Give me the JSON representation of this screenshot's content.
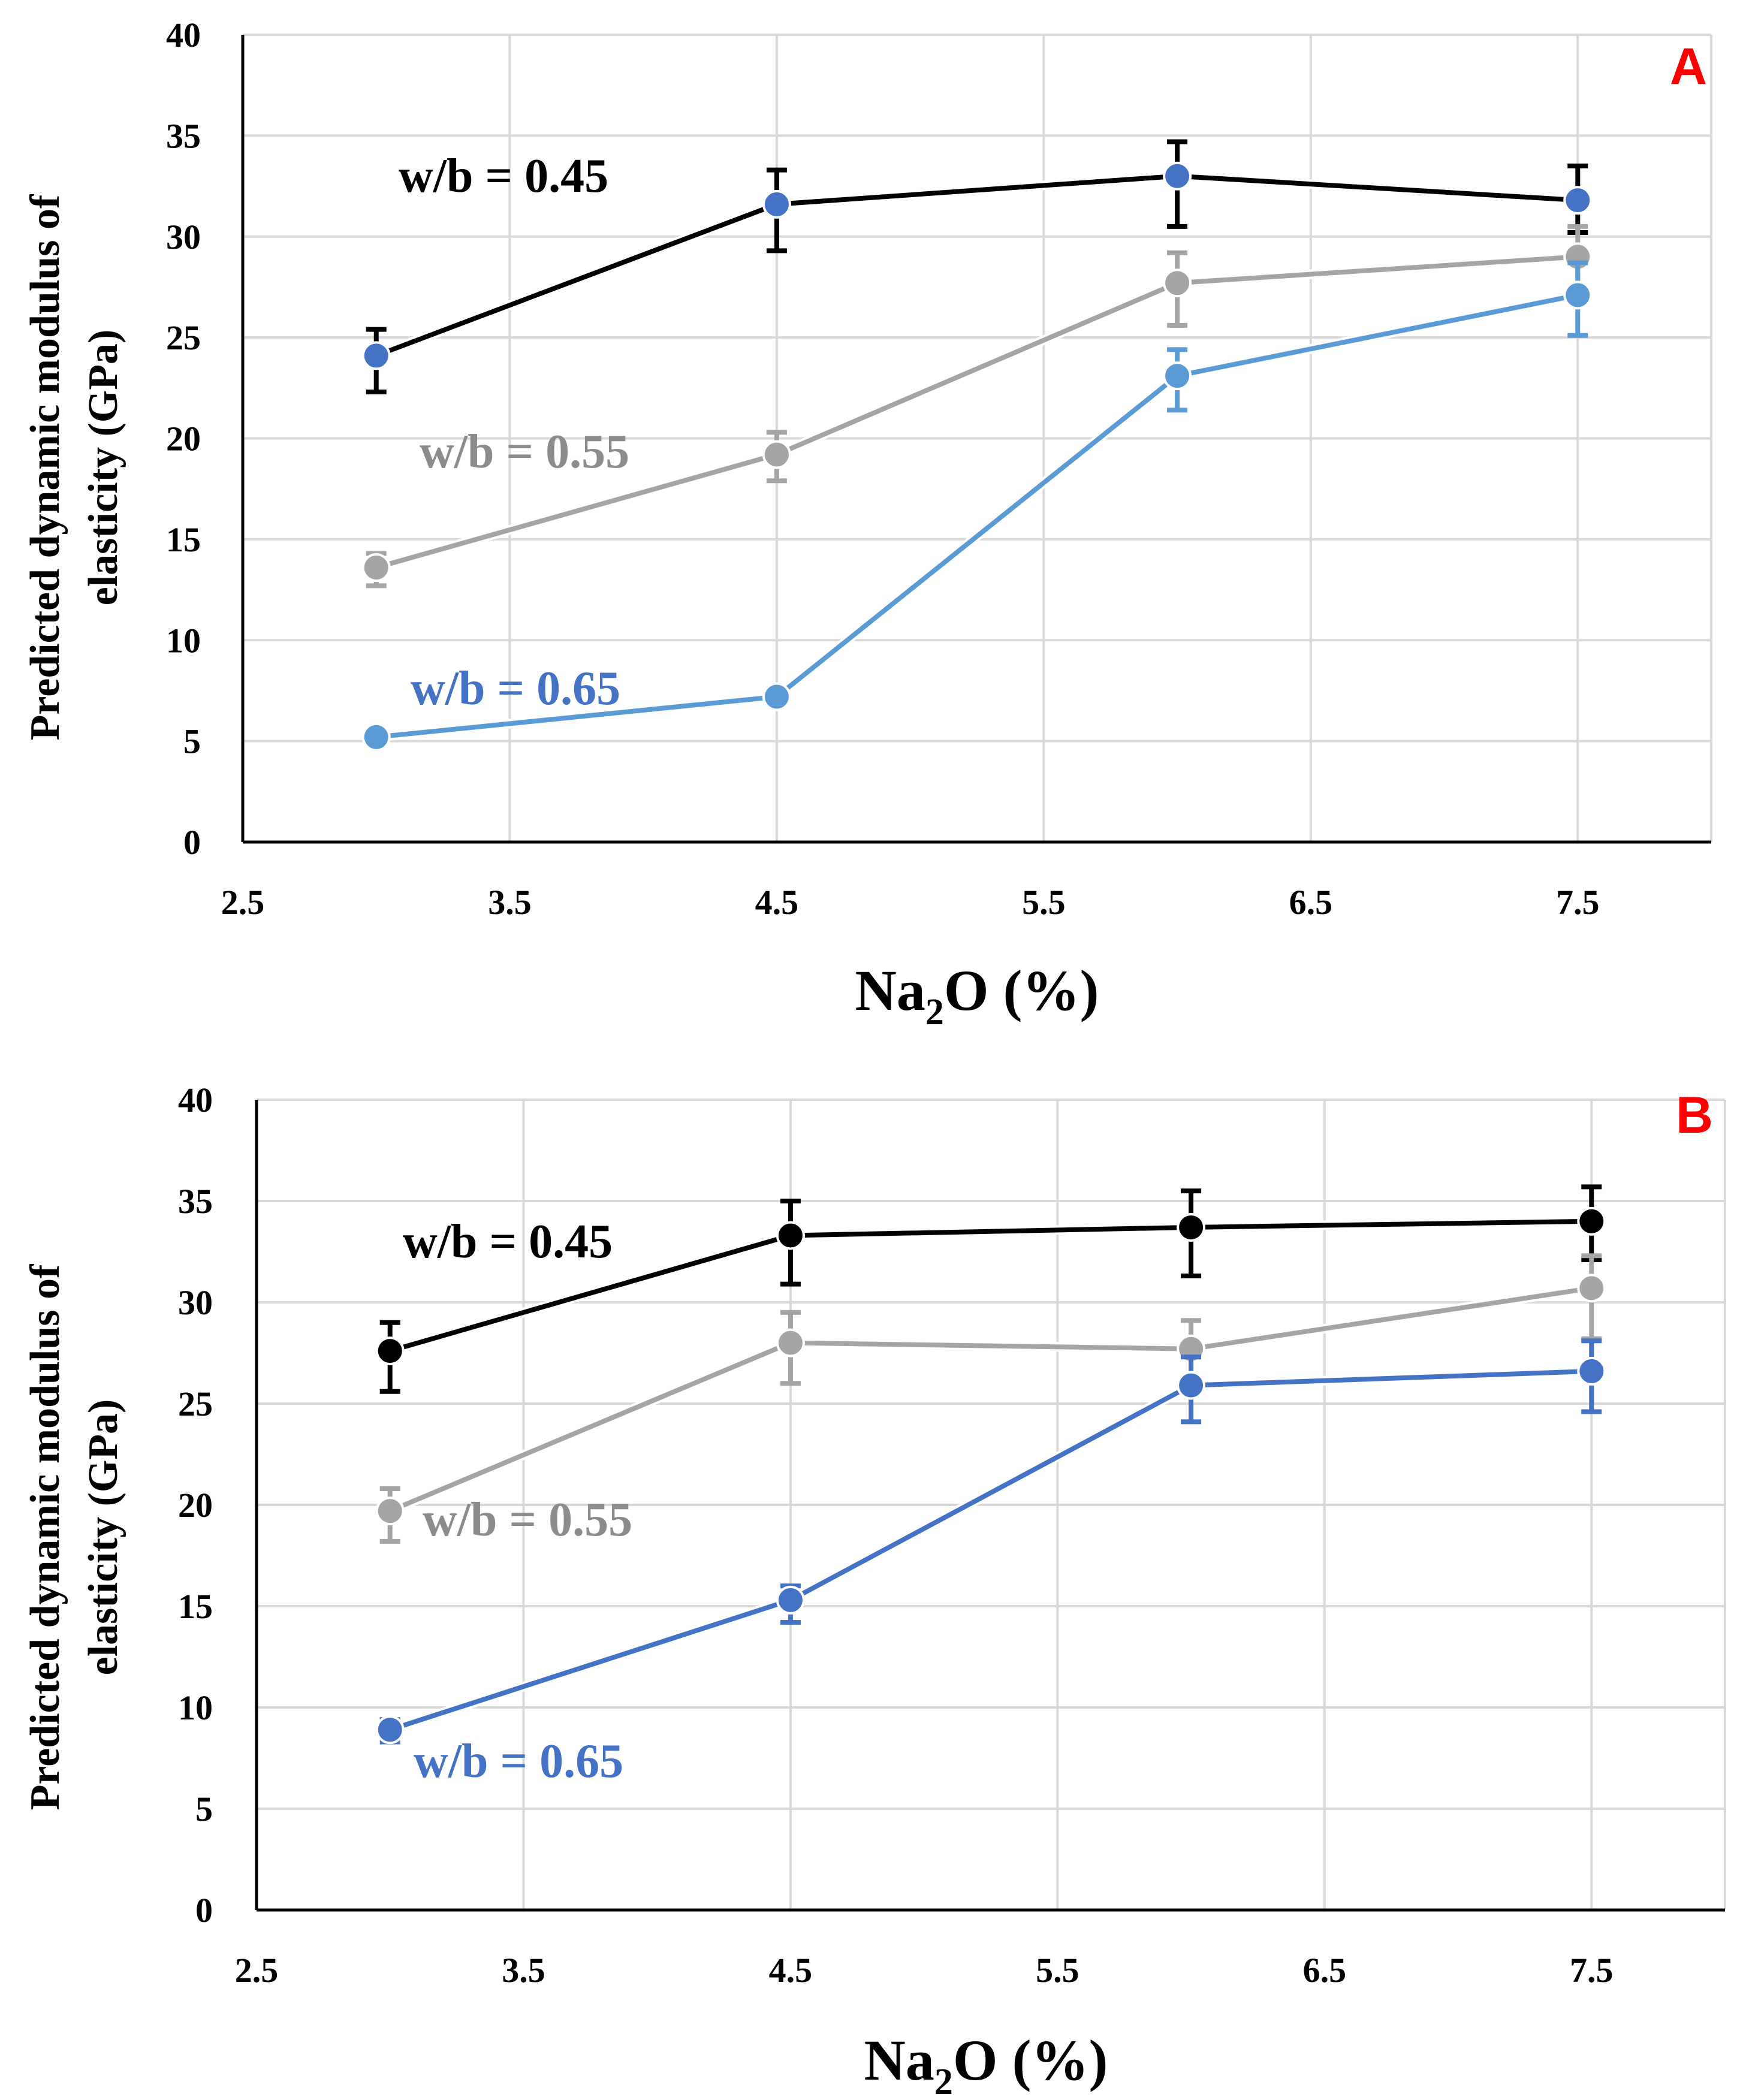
{
  "colors": {
    "grid": "#d9d9d9",
    "axis": "#000000",
    "panel_letter": "#ff0000"
  },
  "chart_data": [
    {
      "type": "line",
      "panel_label": "A",
      "xlabel": "Na",
      "xlabel_sub": "2",
      "xlabel_rest": "O (%)",
      "ylabel_line1": "Predicted dynamic modulus of",
      "ylabel_line2": "elasticity (GPa)",
      "xlim": [
        2.5,
        8.0
      ],
      "ylim": [
        0,
        40
      ],
      "x_ticks": [
        2.5,
        3.5,
        4.5,
        5.5,
        6.5,
        7.5
      ],
      "x_tick_labels": [
        "2.5",
        "3.5",
        "4.5",
        "5.5",
        "6.5",
        "7.5"
      ],
      "y_ticks": [
        0,
        5,
        10,
        15,
        20,
        25,
        30,
        35,
        40
      ],
      "y_tick_labels": [
        "0",
        "5",
        "10",
        "15",
        "20",
        "25",
        "30",
        "35",
        "40"
      ],
      "grid": true,
      "x": [
        3,
        4.5,
        6,
        7.5
      ],
      "series": [
        {
          "name": "w/b = 0.45",
          "values": [
            24.1,
            31.6,
            33.0,
            31.8
          ],
          "error_low": [
            1.8,
            2.3,
            2.5,
            1.6
          ],
          "error_high": [
            1.3,
            1.7,
            1.7,
            1.7
          ],
          "line_color": "#000000",
          "marker_color": "#4472c4",
          "label_color": "#000000"
        },
        {
          "name": "w/b = 0.55",
          "values": [
            13.6,
            19.2,
            27.7,
            29.0
          ],
          "error_low": [
            0.9,
            1.3,
            2.1,
            1.5
          ],
          "error_high": [
            0.7,
            1.1,
            1.5,
            1.5
          ],
          "line_color": "#a5a5a5",
          "marker_color": "#a5a5a5",
          "label_color": "#8c8c8c"
        },
        {
          "name": "w/b = 0.65",
          "values": [
            5.2,
            7.2,
            23.1,
            27.1
          ],
          "error_low": [
            0.2,
            0.4,
            1.7,
            2.0
          ],
          "error_high": [
            0.2,
            0.4,
            1.3,
            1.6
          ],
          "line_color": "#5b9bd5",
          "marker_color": "#5b9bd5",
          "label_color": "#4472c4"
        }
      ]
    },
    {
      "type": "line",
      "panel_label": "B",
      "xlabel": "Na",
      "xlabel_sub": "2",
      "xlabel_rest": "O (%)",
      "ylabel_line1": "Predicted dynamic modulus of",
      "ylabel_line2": "elasticity (GPa)",
      "xlim": [
        2.5,
        8.0
      ],
      "ylim": [
        0,
        40
      ],
      "x_ticks": [
        2.5,
        3.5,
        4.5,
        5.5,
        6.5,
        7.5
      ],
      "x_tick_labels": [
        "2.5",
        "3.5",
        "4.5",
        "5.5",
        "6.5",
        "7.5"
      ],
      "y_ticks": [
        0,
        5,
        10,
        15,
        20,
        25,
        30,
        35,
        40
      ],
      "y_tick_labels": [
        "0",
        "5",
        "10",
        "15",
        "20",
        "25",
        "30",
        "35",
        "40"
      ],
      "grid": true,
      "x": [
        3,
        4.5,
        6,
        7.5
      ],
      "series": [
        {
          "name": "w/b = 0.45",
          "values": [
            27.6,
            33.3,
            33.7,
            34.0
          ],
          "error_low": [
            2.0,
            2.4,
            2.4,
            1.9
          ],
          "error_high": [
            1.4,
            1.7,
            1.8,
            1.7
          ],
          "line_color": "#000000",
          "marker_color": "#000000",
          "label_color": "#000000"
        },
        {
          "name": "w/b = 0.55",
          "values": [
            19.7,
            28.0,
            27.7,
            30.7
          ],
          "error_low": [
            1.5,
            2.0,
            1.4,
            2.5
          ],
          "error_high": [
            1.1,
            1.5,
            1.4,
            1.6
          ],
          "line_color": "#a5a5a5",
          "marker_color": "#a5a5a5",
          "label_color": "#8c8c8c"
        },
        {
          "name": "w/b = 0.65",
          "values": [
            8.9,
            15.3,
            25.9,
            26.6
          ],
          "error_low": [
            0.6,
            1.1,
            1.8,
            2.0
          ],
          "error_high": [
            0.5,
            0.7,
            1.4,
            1.5
          ],
          "line_color": "#4472c4",
          "marker_color": "#4472c4",
          "label_color": "#4472c4"
        }
      ]
    }
  ]
}
